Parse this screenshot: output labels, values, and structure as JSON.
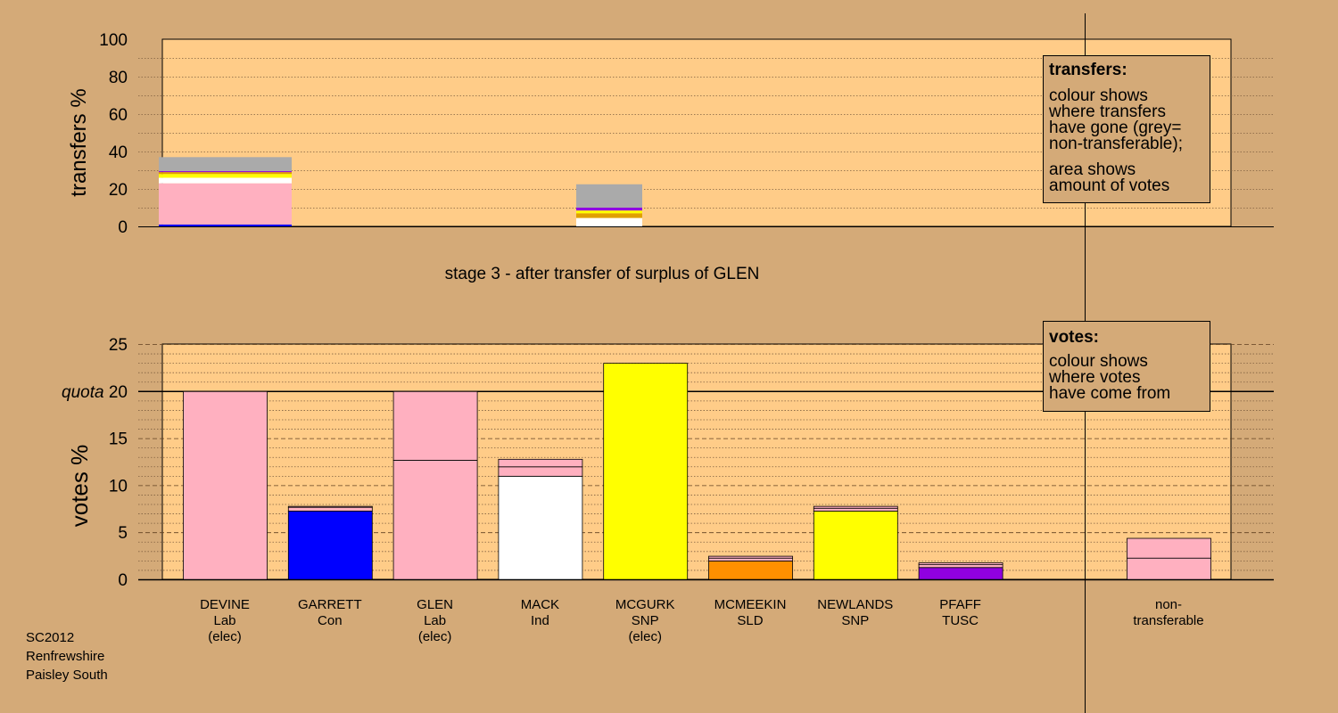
{
  "caption": {
    "stage": "stage 3 - after transfer of surplus of GLEN",
    "footer": [
      "SC2012",
      "Renfrewshire",
      "Paisley South"
    ]
  },
  "legends": {
    "transfers": {
      "title": "transfers:",
      "lines": [
        "colour shows",
        "where transfers",
        "have gone (grey=",
        "non-transferable);"
      ],
      "lines2": [
        "area shows",
        "amount of votes"
      ]
    },
    "votes": {
      "title": "votes:",
      "lines": [
        "colour shows",
        "where votes",
        "have come from"
      ]
    }
  },
  "colors": {
    "background": "#d4aa78",
    "plot": "#ffcc88",
    "lab": "#ffb0c0",
    "con": "#0000ff",
    "ind": "#ffffff",
    "snp": "#ffff00",
    "sld": "#ff9000",
    "tusc": "#9000e0",
    "nontransferable": "#aaaaaa",
    "transfer_orange": "#e0a000"
  },
  "chart_data": [
    {
      "type": "bar",
      "title": "",
      "ylabel": "transfers %",
      "ylim": [
        0,
        100
      ],
      "yticks": [
        "0",
        "20",
        "40",
        "60",
        "80",
        "100"
      ],
      "bars": [
        {
          "slot": 0,
          "segments": [
            {
              "to": "GARRETT",
              "value": 1,
              "color": "#0000ff"
            },
            {
              "to": "GLEN",
              "value": 22,
              "color": "#ffb0c0"
            },
            {
              "to": "MACK",
              "value": 3,
              "color": "#ffffff"
            },
            {
              "to": "MCGURK",
              "value": 2,
              "color": "#ffff00"
            },
            {
              "to": "NEWLANDS",
              "value": 1,
              "color": "#e0a000"
            },
            {
              "to": "PFAFF",
              "value": 0.5,
              "color": "#9000e0"
            },
            {
              "to": "non-transferable",
              "value": 7.5,
              "color": "#aaaaaa"
            }
          ]
        },
        {
          "slot": 2,
          "segments": [
            {
              "to": "MACK",
              "value": 4.5,
              "color": "#ffffff"
            },
            {
              "to": "MCMEEKIN",
              "value": 2.5,
              "color": "#e0a000"
            },
            {
              "to": "NEWLANDS",
              "value": 1.5,
              "color": "#ffff00"
            },
            {
              "to": "PFAFF",
              "value": 1.5,
              "color": "#9000e0"
            },
            {
              "to": "non-transferable",
              "value": 12.5,
              "color": "#aaaaaa"
            }
          ]
        }
      ]
    },
    {
      "type": "bar",
      "title": "",
      "ylabel": "votes %",
      "ylim": [
        0,
        25
      ],
      "yticks": [
        "0",
        "5",
        "10",
        "15",
        "quota 20",
        "25"
      ],
      "quota": 20,
      "quota_label": "quota",
      "candidates": [
        {
          "name": "DEVINE",
          "party": "Lab",
          "status": "(elec)",
          "segments": [
            {
              "value": 20,
              "color": "#ffb0c0"
            }
          ]
        },
        {
          "name": "GARRETT",
          "party": "Con",
          "status": "",
          "segments": [
            {
              "value": 7.3,
              "color": "#0000ff"
            },
            {
              "value": 0.4,
              "color": "#ffb0c0"
            },
            {
              "value": 0.1,
              "color": "#ffb0c0"
            }
          ]
        },
        {
          "name": "GLEN",
          "party": "Lab",
          "status": "(elec)",
          "segments": [
            {
              "value": 12.7,
              "color": "#ffb0c0"
            },
            {
              "value": 7.3,
              "color": "#ffb0c0"
            }
          ]
        },
        {
          "name": "MACK",
          "party": "Ind",
          "status": "",
          "segments": [
            {
              "value": 11.0,
              "color": "#ffffff"
            },
            {
              "value": 1.0,
              "color": "#ffb0c0"
            },
            {
              "value": 0.8,
              "color": "#ffb0c0"
            }
          ]
        },
        {
          "name": "MCGURK",
          "party": "SNP",
          "status": "(elec)",
          "segments": [
            {
              "value": 23.0,
              "color": "#ffff00"
            }
          ]
        },
        {
          "name": "MCMEEKIN",
          "party": "SLD",
          "status": "",
          "segments": [
            {
              "value": 2.0,
              "color": "#ff9000"
            },
            {
              "value": 0.3,
              "color": "#ffb0c0"
            },
            {
              "value": 0.2,
              "color": "#ffb0c0"
            }
          ]
        },
        {
          "name": "NEWLANDS",
          "party": "SNP",
          "status": "",
          "segments": [
            {
              "value": 7.3,
              "color": "#ffff00"
            },
            {
              "value": 0.3,
              "color": "#ffb0c0"
            },
            {
              "value": 0.2,
              "color": "#ffb0c0"
            }
          ]
        },
        {
          "name": "PFAFF",
          "party": "TUSC",
          "status": "",
          "segments": [
            {
              "value": 1.3,
              "color": "#9000e0"
            },
            {
              "value": 0.3,
              "color": "#ffb0c0"
            },
            {
              "value": 0.2,
              "color": "#ffb0c0"
            }
          ]
        }
      ],
      "nontransferable": {
        "name": "non-",
        "name2": "transferable",
        "segments": [
          {
            "value": 2.3,
            "color": "#ffb0c0"
          },
          {
            "value": 2.1,
            "color": "#ffb0c0"
          }
        ]
      }
    }
  ]
}
